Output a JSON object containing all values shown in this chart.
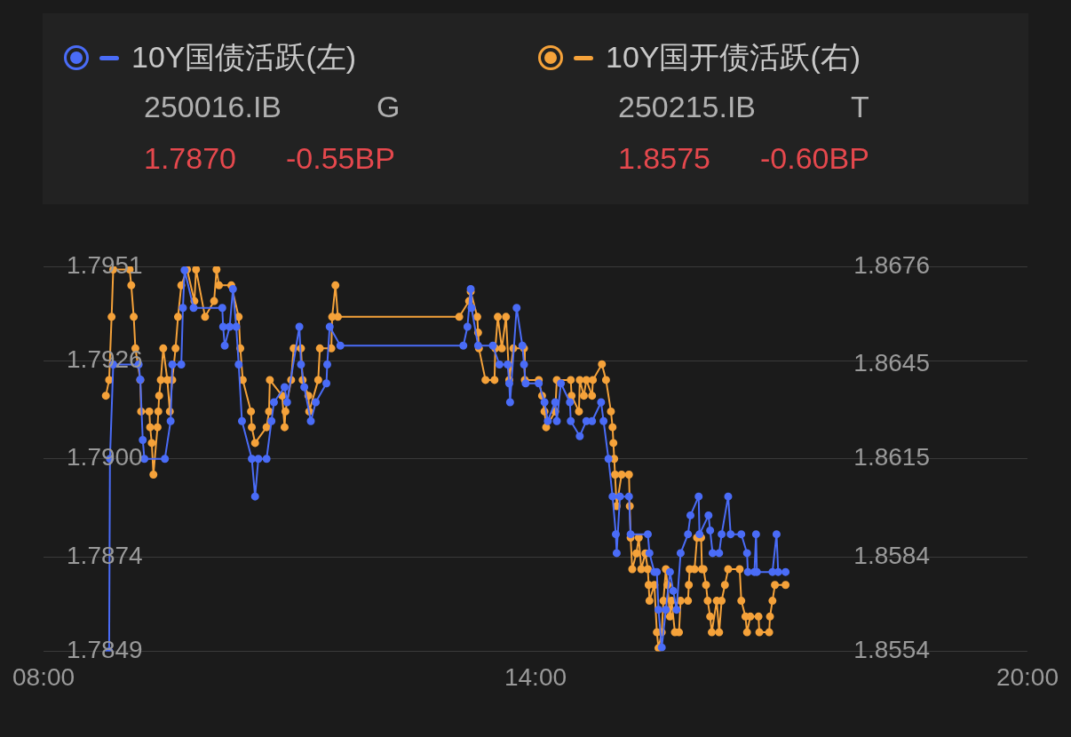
{
  "chart_data": {
    "type": "line",
    "legend": "top",
    "grid": "y",
    "marker": "circle",
    "line_style": "solid",
    "annotations": [
      "250016.IB",
      "G",
      "1.7870",
      "-0.55BP",
      "250215.IB",
      "T",
      "1.8575",
      "-0.60BP"
    ],
    "xlim": [
      8,
      20
    ],
    "xticks": [
      {
        "value": 8,
        "label": "08:00"
      },
      {
        "value": 14,
        "label": "14:00"
      },
      {
        "value": 20,
        "label": "20:00"
      }
    ],
    "ylim": [
      1.7849,
      1.7951
    ],
    "yticks": [
      1.7849,
      1.7874,
      {
        "value": 1.79,
        "label": "1.7900"
      },
      1.7926,
      1.7951
    ],
    "y2lim": [
      1.8554,
      1.8676
    ],
    "y2ticks": [
      1.8554,
      1.8584,
      1.8615,
      1.8645,
      1.8676
    ],
    "series": [
      {
        "name": "10Y国债活跃(左)",
        "color": "#4a6cf7",
        "x": [
          8.8,
          8.81,
          8.85,
          9.16,
          9.18,
          9.21,
          9.23,
          9.48,
          9.55,
          9.57,
          9.68,
          9.7,
          9.72,
          9.83,
          10.18,
          10.19,
          10.21,
          10.27,
          10.31,
          10.35,
          10.38,
          10.42,
          10.54,
          10.58,
          10.62,
          10.72,
          10.78,
          10.81,
          10.94,
          10.97,
          11.12,
          11.14,
          11.18,
          11.26,
          11.32,
          11.45,
          11.46,
          11.49,
          11.62,
          13.12,
          13.17,
          13.21,
          13.22,
          13.3,
          13.48,
          13.56,
          13.66,
          13.68,
          13.69,
          13.77,
          13.84,
          13.86,
          13.88,
          14.04,
          14.11,
          14.15,
          14.24,
          14.26,
          14.31,
          14.42,
          14.43,
          14.54,
          14.62,
          14.69,
          14.8,
          14.83,
          14.89,
          14.94,
          14.98,
          14.99,
          15.03,
          15.14,
          15.16,
          15.37,
          15.39,
          15.45,
          15.48,
          15.5,
          15.54,
          15.59,
          15.64,
          15.68,
          15.72,
          15.77,
          15.86,
          15.89,
          15.99,
          16.0,
          16.11,
          16.13,
          16.16,
          16.24,
          16.27,
          16.35,
          16.38,
          16.51,
          16.58,
          16.59,
          16.67,
          16.69,
          16.7,
          16.89,
          16.94,
          16.96,
          17.05
        ],
        "values": [
          1.7849,
          1.79,
          1.7925,
          1.7925,
          1.7921,
          1.7905,
          1.79,
          1.79,
          1.791,
          1.7925,
          1.7925,
          1.794,
          1.795,
          1.794,
          1.794,
          1.7935,
          1.793,
          1.7935,
          1.7945,
          1.7935,
          1.7925,
          1.791,
          1.79,
          1.789,
          1.79,
          1.79,
          1.791,
          1.7915,
          1.7919,
          1.7915,
          1.7935,
          1.7925,
          1.7919,
          1.791,
          1.7915,
          1.792,
          1.7925,
          1.7935,
          1.793,
          1.793,
          1.7935,
          1.7945,
          1.794,
          1.793,
          1.793,
          1.7925,
          1.7925,
          1.792,
          1.7915,
          1.794,
          1.793,
          1.7925,
          1.792,
          1.792,
          1.7915,
          1.791,
          1.7915,
          1.791,
          1.792,
          1.7915,
          1.791,
          1.7906,
          1.791,
          1.791,
          1.7915,
          1.791,
          1.79,
          1.789,
          1.788,
          1.7875,
          1.789,
          1.789,
          1.788,
          1.788,
          1.7875,
          1.787,
          1.787,
          1.786,
          1.785,
          1.786,
          1.787,
          1.7865,
          1.786,
          1.7875,
          1.788,
          1.7885,
          1.789,
          1.788,
          1.7885,
          1.7881,
          1.7875,
          1.7875,
          1.788,
          1.789,
          1.788,
          1.788,
          1.7875,
          1.787,
          1.787,
          1.788,
          1.787,
          1.787,
          1.788,
          1.787,
          1.787
        ]
      },
      {
        "name": "10Y国开债活跃(右)",
        "color": "#f5a23a",
        "axis": "y2",
        "x": [
          8.76,
          8.8,
          8.83,
          8.85,
          9.05,
          9.07,
          9.1,
          9.12,
          9.18,
          9.19,
          9.29,
          9.3,
          9.32,
          9.34,
          9.39,
          9.4,
          9.41,
          9.43,
          9.46,
          9.51,
          9.54,
          9.57,
          9.61,
          9.64,
          9.68,
          9.75,
          9.84,
          9.86,
          9.97,
          10.08,
          10.11,
          10.14,
          10.29,
          10.38,
          10.4,
          10.43,
          10.53,
          10.54,
          10.58,
          10.72,
          10.75,
          10.76,
          10.91,
          10.94,
          10.95,
          11.02,
          11.05,
          11.14,
          11.16,
          11.23,
          11.24,
          11.35,
          11.37,
          11.51,
          11.52,
          11.56,
          11.59,
          13.07,
          13.19,
          13.21,
          13.29,
          13.3,
          13.31,
          13.39,
          13.5,
          13.51,
          13.54,
          13.59,
          13.64,
          13.68,
          13.73,
          13.86,
          13.87,
          14.04,
          14.08,
          14.11,
          14.13,
          14.24,
          14.26,
          14.43,
          14.44,
          14.53,
          14.54,
          14.59,
          14.62,
          14.69,
          14.7,
          14.81,
          14.86,
          14.92,
          14.94,
          14.95,
          14.96,
          14.97,
          14.99,
          15.05,
          15.14,
          15.15,
          15.16,
          15.18,
          15.23,
          15.26,
          15.29,
          15.34,
          15.37,
          15.38,
          15.39,
          15.45,
          15.48,
          15.5,
          15.54,
          15.56,
          15.59,
          15.61,
          15.64,
          15.66,
          15.7,
          15.75,
          15.77,
          15.86,
          15.87,
          15.88,
          15.94,
          15.97,
          16.02,
          16.03,
          16.05,
          16.08,
          16.1,
          16.13,
          16.15,
          16.21,
          16.24,
          16.27,
          16.31,
          16.35,
          16.49,
          16.51,
          16.56,
          16.58,
          16.62,
          16.72,
          16.73,
          16.85,
          16.86,
          16.89,
          16.92,
          17.05
        ],
        "values": [
          1.8635,
          1.864,
          1.866,
          1.8675,
          1.8675,
          1.867,
          1.866,
          1.865,
          1.864,
          1.863,
          1.863,
          1.8625,
          1.862,
          1.861,
          1.8625,
          1.863,
          1.8635,
          1.864,
          1.865,
          1.864,
          1.863,
          1.864,
          1.865,
          1.866,
          1.867,
          1.8675,
          1.8665,
          1.8675,
          1.866,
          1.8665,
          1.8675,
          1.867,
          1.867,
          1.866,
          1.865,
          1.864,
          1.863,
          1.8625,
          1.862,
          1.8625,
          1.863,
          1.864,
          1.8635,
          1.8625,
          1.863,
          1.864,
          1.865,
          1.865,
          1.864,
          1.8635,
          1.863,
          1.864,
          1.865,
          1.865,
          1.866,
          1.867,
          1.866,
          1.866,
          1.8665,
          1.8668,
          1.866,
          1.8655,
          1.865,
          1.864,
          1.864,
          1.865,
          1.866,
          1.865,
          1.866,
          1.864,
          1.865,
          1.865,
          1.864,
          1.864,
          1.8635,
          1.863,
          1.8625,
          1.863,
          1.864,
          1.864,
          1.8635,
          1.863,
          1.864,
          1.8635,
          1.864,
          1.8635,
          1.864,
          1.8645,
          1.864,
          1.863,
          1.8625,
          1.862,
          1.8615,
          1.861,
          1.86,
          1.861,
          1.861,
          1.86,
          1.859,
          1.858,
          1.8585,
          1.859,
          1.858,
          1.8585,
          1.858,
          1.8575,
          1.857,
          1.8575,
          1.856,
          1.8555,
          1.856,
          1.857,
          1.858,
          1.8575,
          1.8565,
          1.857,
          1.856,
          1.856,
          1.857,
          1.857,
          1.8575,
          1.858,
          1.858,
          1.859,
          1.859,
          1.858,
          1.858,
          1.8575,
          1.857,
          1.8565,
          1.856,
          1.857,
          1.856,
          1.857,
          1.8575,
          1.858,
          1.858,
          1.857,
          1.8565,
          1.856,
          1.8565,
          1.8565,
          1.856,
          1.856,
          1.8565,
          1.857,
          1.8575,
          1.8575
        ]
      }
    ]
  }
}
